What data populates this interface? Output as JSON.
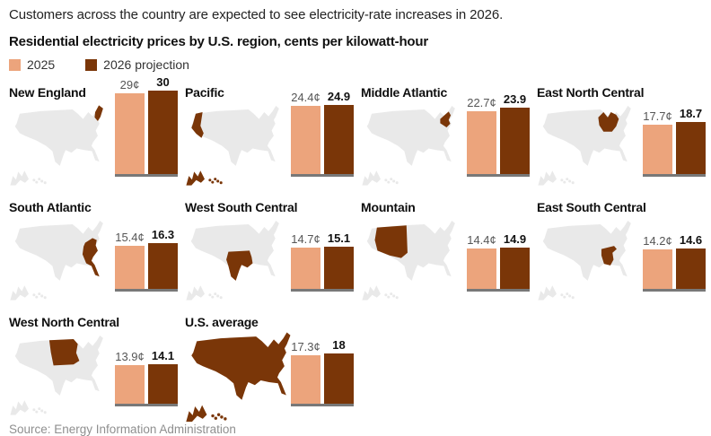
{
  "headline": "Customers across the country are expected to see electricity-rate increases in 2026.",
  "chart_title": "Residential electricity prices by U.S. region, cents per kilowatt-hour",
  "legend": {
    "items": [
      {
        "label": "2025",
        "color": "#ECA47C"
      },
      {
        "label": "2026 projection",
        "color": "#7A3608"
      }
    ]
  },
  "colors": {
    "bar_2025": "#ECA47C",
    "bar_2026": "#7A3608",
    "region_highlight": "#7A3608",
    "map_base": "#E9E9E9",
    "baseline": "#787878"
  },
  "source": "Source: Energy Information Administration",
  "chart_data": {
    "type": "bar",
    "title": "Residential electricity prices by U.S. region, cents per kilowatt-hour",
    "unit": "cents per kilowatt-hour",
    "series_names": [
      "2025",
      "2026 projection"
    ],
    "legend_position": "top",
    "panels": [
      {
        "region": "New England",
        "key": "new-england",
        "v2025": 29,
        "v2026": 30,
        "l2025": "29¢",
        "l2026": "30"
      },
      {
        "region": "Pacific",
        "key": "pacific",
        "v2025": 24.4,
        "v2026": 24.9,
        "l2025": "24.4¢",
        "l2026": "24.9"
      },
      {
        "region": "Middle Atlantic",
        "key": "middle-atlantic",
        "v2025": 22.7,
        "v2026": 23.9,
        "l2025": "22.7¢",
        "l2026": "23.9"
      },
      {
        "region": "East North Central",
        "key": "east-north-central",
        "v2025": 17.7,
        "v2026": 18.7,
        "l2025": "17.7¢",
        "l2026": "18.7"
      },
      {
        "region": "South Atlantic",
        "key": "south-atlantic",
        "v2025": 15.4,
        "v2026": 16.3,
        "l2025": "15.4¢",
        "l2026": "16.3"
      },
      {
        "region": "West South Central",
        "key": "west-south-central",
        "v2025": 14.7,
        "v2026": 15.1,
        "l2025": "14.7¢",
        "l2026": "15.1"
      },
      {
        "region": "Mountain",
        "key": "mountain",
        "v2025": 14.4,
        "v2026": 14.9,
        "l2025": "14.4¢",
        "l2026": "14.9"
      },
      {
        "region": "East South Central",
        "key": "east-south-central",
        "v2025": 14.2,
        "v2026": 14.6,
        "l2025": "14.2¢",
        "l2026": "14.6"
      },
      {
        "region": "West North Central",
        "key": "west-north-central",
        "v2025": 13.9,
        "v2026": 14.1,
        "l2025": "13.9¢",
        "l2026": "14.1"
      },
      {
        "region": "U.S. average",
        "key": "us-average",
        "v2025": 17.3,
        "v2026": 18,
        "l2025": "17.3¢",
        "l2026": "18"
      }
    ]
  }
}
